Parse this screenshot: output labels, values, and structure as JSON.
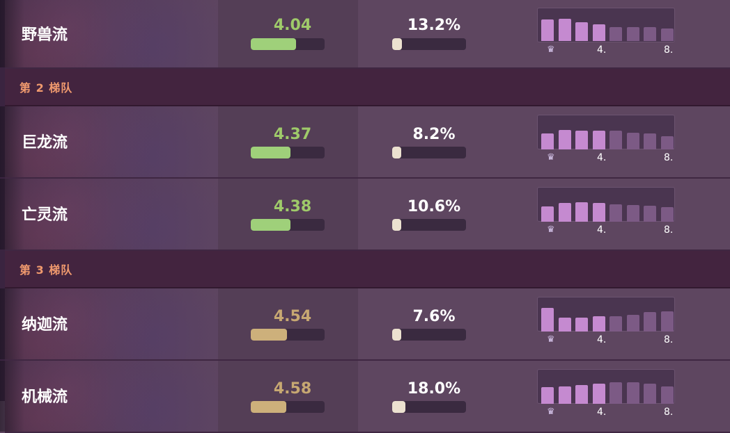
{
  "rows": [
    {
      "type": "comp",
      "name": "野兽流",
      "avg": "4.04",
      "avg_color": "green",
      "avg_pct": 61,
      "ratio": "13.2%",
      "ratio_pct": 13.2,
      "dist": [
        90,
        95,
        80,
        70,
        60,
        60,
        58,
        52
      ],
      "top_count": 4
    },
    {
      "type": "tier",
      "label": "第 2 梯队"
    },
    {
      "type": "comp",
      "name": "巨龙流",
      "avg": "4.37",
      "avg_color": "green",
      "avg_pct": 54,
      "ratio": "8.2%",
      "ratio_pct": 8.2,
      "dist": [
        68,
        82,
        80,
        80,
        78,
        70,
        68,
        55
      ],
      "top_count": 4
    },
    {
      "type": "comp",
      "name": "亡灵流",
      "avg": "4.38",
      "avg_color": "green",
      "avg_pct": 54,
      "ratio": "10.6%",
      "ratio_pct": 10.6,
      "dist": [
        66,
        80,
        82,
        80,
        75,
        70,
        68,
        62
      ],
      "top_count": 4
    },
    {
      "type": "tier",
      "label": "第 3 梯队"
    },
    {
      "type": "comp",
      "name": "纳迦流",
      "avg": "4.54",
      "avg_color": "gold",
      "avg_pct": 49,
      "ratio": "7.6%",
      "ratio_pct": 7.6,
      "dist": [
        100,
        60,
        60,
        66,
        66,
        70,
        82,
        84
      ],
      "top_count": 4
    },
    {
      "type": "comp",
      "name": "机械流",
      "avg": "4.58",
      "avg_color": "gold",
      "avg_pct": 48,
      "ratio": "18.0%",
      "ratio_pct": 18.0,
      "dist": [
        70,
        75,
        80,
        86,
        90,
        90,
        85,
        75
      ],
      "top_count": 4
    }
  ],
  "dist_labels": {
    "mid": "4.",
    "end": "8."
  },
  "crown_icon": "crown-icon",
  "colors": {
    "tier_label": "#f09a6e",
    "avg_green": "#9fca6a",
    "avg_gold": "#c7a872",
    "bar_top": "#c58ad0",
    "bar_low": "#7c5a85"
  }
}
